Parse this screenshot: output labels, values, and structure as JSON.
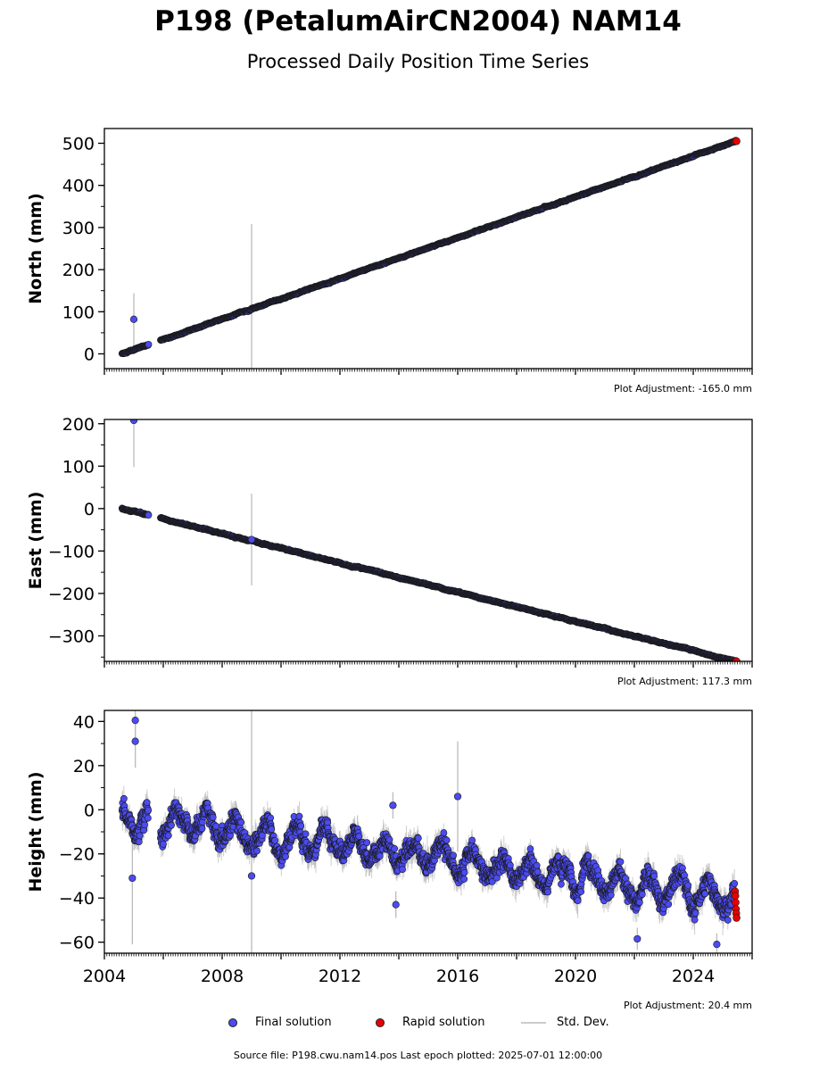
{
  "title": "P198 (PetalumAirCN2004) NAM14",
  "subtitle": "Processed Daily Position Time Series",
  "source_text": "Source file: P198.cwu.nam14.pos  Last epoch plotted: 2025-07-01 12:00:00",
  "legend": {
    "final": "Final solution",
    "rapid": "Rapid solution",
    "std": "Std. Dev."
  },
  "colors": {
    "final": "#4b4bf0",
    "rapid": "#e80000",
    "std": "#bbbbbb",
    "edge": "#1a1a1a"
  },
  "chart_data": [
    {
      "type": "scatter",
      "name": "north",
      "ylabel": "North (mm)",
      "adjustment": "Plot Adjustment: -165.0 mm",
      "xlim": [
        2004.0,
        2026.0
      ],
      "ylim": [
        -35,
        535
      ],
      "yticks": [
        0,
        100,
        200,
        300,
        400,
        500
      ],
      "ytick_labels": [
        "0",
        "100",
        "200",
        "300",
        "400",
        "500"
      ],
      "trend": {
        "start_year": 2004.6,
        "start_value": 0,
        "end_year": 2025.45,
        "end_value": 505
      },
      "gap": [
        2005.5,
        2005.9
      ],
      "outliers": [
        {
          "x": 2005.0,
          "y": 82,
          "err": 62
        },
        {
          "x": 2009.0,
          "y": 100,
          "err": 208
        }
      ]
    },
    {
      "type": "scatter",
      "name": "east",
      "ylabel": "East (mm)",
      "adjustment": "Plot Adjustment: 117.3 mm",
      "xlim": [
        2004.0,
        2026.0
      ],
      "ylim": [
        -360,
        210
      ],
      "yticks": [
        -300,
        -200,
        -100,
        0,
        100,
        200
      ],
      "ytick_labels": [
        "−300",
        "−200",
        "−100",
        "0",
        "100",
        "200"
      ],
      "trend": {
        "start_year": 2004.6,
        "start_value": 0,
        "end_year": 2025.45,
        "end_value": -360
      },
      "gap": [
        2005.5,
        2005.9
      ],
      "outliers": [
        {
          "x": 2005.0,
          "y": 208,
          "err": 110
        },
        {
          "x": 2009.0,
          "y": -73,
          "err": 108
        }
      ]
    },
    {
      "type": "scatter",
      "name": "height",
      "ylabel": "Height (mm)",
      "adjustment": "Plot Adjustment: 20.4 mm",
      "xlim": [
        2004.0,
        2026.0
      ],
      "ylim": [
        -65,
        45
      ],
      "yticks": [
        -60,
        -40,
        -20,
        0,
        20,
        40
      ],
      "ytick_labels": [
        "−60",
        "−40",
        "−20",
        "0",
        "20",
        "40"
      ],
      "xticks": [
        2004,
        2008,
        2012,
        2016,
        2020,
        2024
      ],
      "xtick_labels": [
        "2004",
        "2008",
        "2012",
        "2016",
        "2020",
        "2024"
      ],
      "trend": {
        "start_year": 2004.6,
        "start_value": -3,
        "end_year": 2025.45,
        "end_value": -40
      },
      "gap": [
        2005.5,
        2005.9
      ],
      "outliers": [
        {
          "x": 2005.05,
          "y": 40.5,
          "err": 10
        },
        {
          "x": 2005.05,
          "y": 31,
          "err": 12
        },
        {
          "x": 2004.95,
          "y": -31,
          "err": 30
        },
        {
          "x": 2013.8,
          "y": 2,
          "err": 6
        },
        {
          "x": 2013.9,
          "y": -43,
          "err": 6
        },
        {
          "x": 2016.0,
          "y": 6,
          "err": 25
        },
        {
          "x": 2022.1,
          "y": -58.5,
          "err": 5
        },
        {
          "x": 2024.8,
          "y": -61,
          "err": 5
        },
        {
          "x": 2009.0,
          "y": -30,
          "err": 75
        }
      ],
      "rapid_points": [
        {
          "x": 2025.42,
          "y": -37
        },
        {
          "x": 2025.43,
          "y": -39
        },
        {
          "x": 2025.44,
          "y": -42
        },
        {
          "x": 2025.45,
          "y": -45
        },
        {
          "x": 2025.46,
          "y": -47
        },
        {
          "x": 2025.47,
          "y": -49
        }
      ]
    }
  ]
}
